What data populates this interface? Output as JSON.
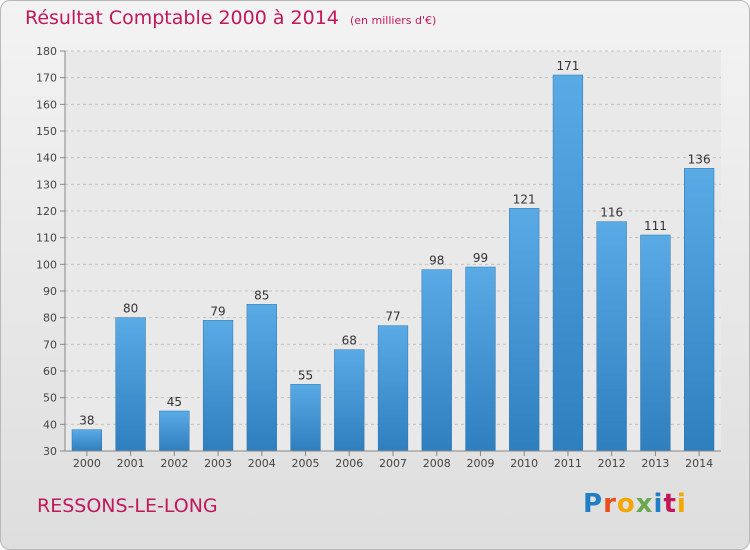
{
  "header": {
    "title": "Résultat Comptable 2000 à 2014",
    "unit": "(en milliers d'€)"
  },
  "footer": {
    "commune": "RESSONS-LE-LONG",
    "brand_letters": [
      "P",
      "r",
      "o",
      "x",
      "i",
      "t",
      "i"
    ],
    "brand_colors": [
      "#1f7ec5",
      "#e94e1b",
      "#f4a700",
      "#6aa84f",
      "#1f7ec5",
      "#c2185b",
      "#f4a700"
    ]
  },
  "chart_data": {
    "type": "bar",
    "title": "Résultat Comptable 2000 à 2014",
    "xlabel": "",
    "ylabel": "",
    "categories": [
      "2000",
      "2001",
      "2002",
      "2003",
      "2004",
      "2005",
      "2006",
      "2007",
      "2008",
      "2009",
      "2010",
      "2011",
      "2012",
      "2013",
      "2014"
    ],
    "values": [
      38,
      80,
      45,
      79,
      85,
      55,
      68,
      77,
      98,
      99,
      121,
      171,
      116,
      111,
      136
    ],
    "ylim": [
      30,
      180
    ],
    "yticks": [
      30,
      40,
      50,
      60,
      70,
      80,
      90,
      100,
      110,
      120,
      130,
      140,
      150,
      160,
      170,
      180
    ],
    "grid": true,
    "legend": "none",
    "bar_color": "#4d9fdc"
  }
}
